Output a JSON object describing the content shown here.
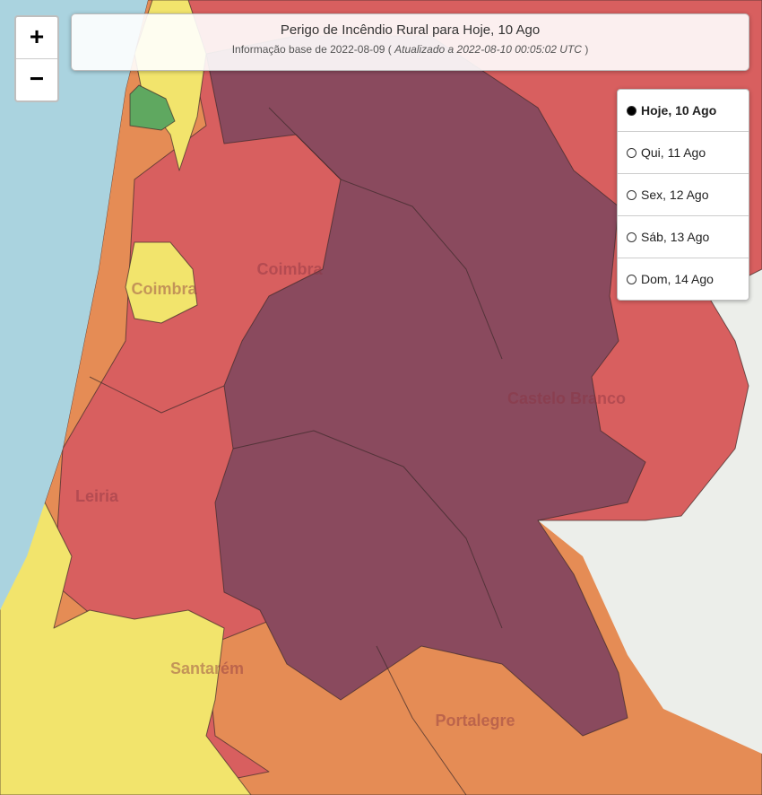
{
  "header": {
    "title": "Perigo de Incêndio Rural para Hoje, 10 Ago",
    "subtitle_prefix": "Informação base de 2022-08-09 (",
    "subtitle_updated": "Atualizado a 2022-08-10 00:05:02 UTC",
    "subtitle_suffix": ")"
  },
  "zoom": {
    "in": "+",
    "out": "−"
  },
  "days": [
    {
      "label": "Hoje, 10 Ago",
      "selected": true
    },
    {
      "label": "Qui, 11 Ago",
      "selected": false
    },
    {
      "label": "Sex, 12 Ago",
      "selected": false
    },
    {
      "label": "Sáb, 13 Ago",
      "selected": false
    },
    {
      "label": "Dom, 14 Ago",
      "selected": false
    }
  ],
  "places": [
    "Coimbra",
    "Coimbra",
    "Castelo Branco",
    "Leiria",
    "Santarém",
    "Portalegre"
  ]
}
